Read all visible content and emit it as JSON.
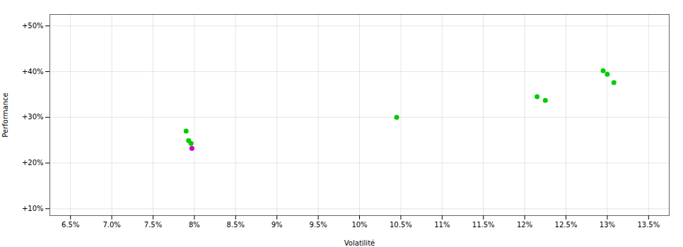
{
  "chart_data": {
    "type": "scatter",
    "xlabel": "Volatilité",
    "ylabel": "Performance",
    "xlim": [
      0.0625,
      0.1375
    ],
    "ylim": [
      0.085,
      0.525
    ],
    "xticks": [
      {
        "value": 0.065,
        "label": "6.5%"
      },
      {
        "value": 0.07,
        "label": "7.0%"
      },
      {
        "value": 0.075,
        "label": "7.5%"
      },
      {
        "value": 0.08,
        "label": "8%"
      },
      {
        "value": 0.085,
        "label": "8.5%"
      },
      {
        "value": 0.09,
        "label": "9%"
      },
      {
        "value": 0.095,
        "label": "9.5%"
      },
      {
        "value": 0.1,
        "label": "10%"
      },
      {
        "value": 0.105,
        "label": "10.5%"
      },
      {
        "value": 0.11,
        "label": "11%"
      },
      {
        "value": 0.115,
        "label": "11.5%"
      },
      {
        "value": 0.12,
        "label": "12%"
      },
      {
        "value": 0.125,
        "label": "12.5%"
      },
      {
        "value": 0.13,
        "label": "13%"
      },
      {
        "value": 0.135,
        "label": "13.5%"
      }
    ],
    "yticks": [
      {
        "value": 0.1,
        "label": "+10%"
      },
      {
        "value": 0.2,
        "label": "+20%"
      },
      {
        "value": 0.3,
        "label": "+30%"
      },
      {
        "value": 0.4,
        "label": "+40%"
      },
      {
        "value": 0.5,
        "label": "+50%"
      }
    ],
    "grid": true,
    "series": [
      {
        "color": "#00cc00",
        "x": [
          0.079,
          0.0793,
          0.0796,
          0.1045,
          0.1215,
          0.1225,
          0.1295,
          0.13,
          0.1308
        ],
        "values": [
          0.27,
          0.249,
          0.243,
          0.3,
          0.345,
          0.337,
          0.402,
          0.394,
          0.376
        ]
      },
      {
        "color": "#cc00cc",
        "x": [
          0.0797
        ],
        "values": [
          0.232
        ]
      }
    ]
  }
}
